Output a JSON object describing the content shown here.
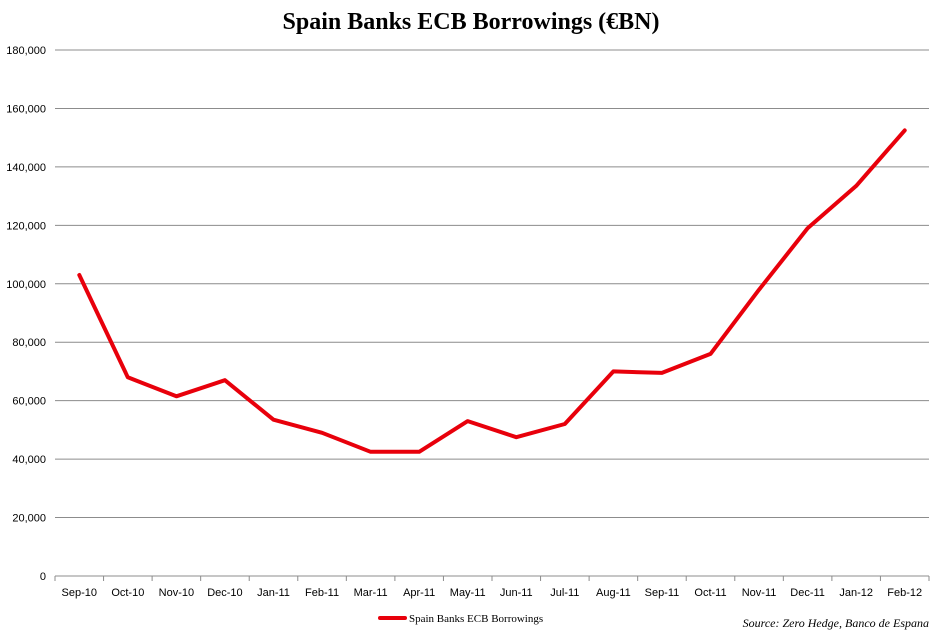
{
  "chart_data": {
    "type": "line",
    "title": "Spain Banks ECB Borrowings (€BN)",
    "xlabel": "",
    "ylabel": "",
    "categories": [
      "Sep-10",
      "Oct-10",
      "Nov-10",
      "Dec-10",
      "Jan-11",
      "Feb-11",
      "Mar-11",
      "Apr-11",
      "May-11",
      "Jun-11",
      "Jul-11",
      "Aug-11",
      "Sep-11",
      "Oct-11",
      "Nov-11",
      "Dec-11",
      "Jan-12",
      "Feb-12"
    ],
    "series": [
      {
        "name": "Spain Banks ECB Borrowings",
        "color": "#e8000b",
        "values": [
          103000,
          68000,
          61500,
          67000,
          53500,
          49000,
          42500,
          42500,
          53000,
          47500,
          52000,
          70000,
          69500,
          76000,
          98000,
          119000,
          133500,
          152500
        ]
      }
    ],
    "ylim": [
      0,
      180000
    ],
    "yticks": [
      "0",
      "20,000",
      "40,000",
      "60,000",
      "80,000",
      "100,000",
      "120,000",
      "140,000",
      "160,000",
      "180,000"
    ],
    "grid": "horizontal",
    "legend_position": "bottom",
    "source": "Source: Zero Hedge, Banco de Espana"
  }
}
